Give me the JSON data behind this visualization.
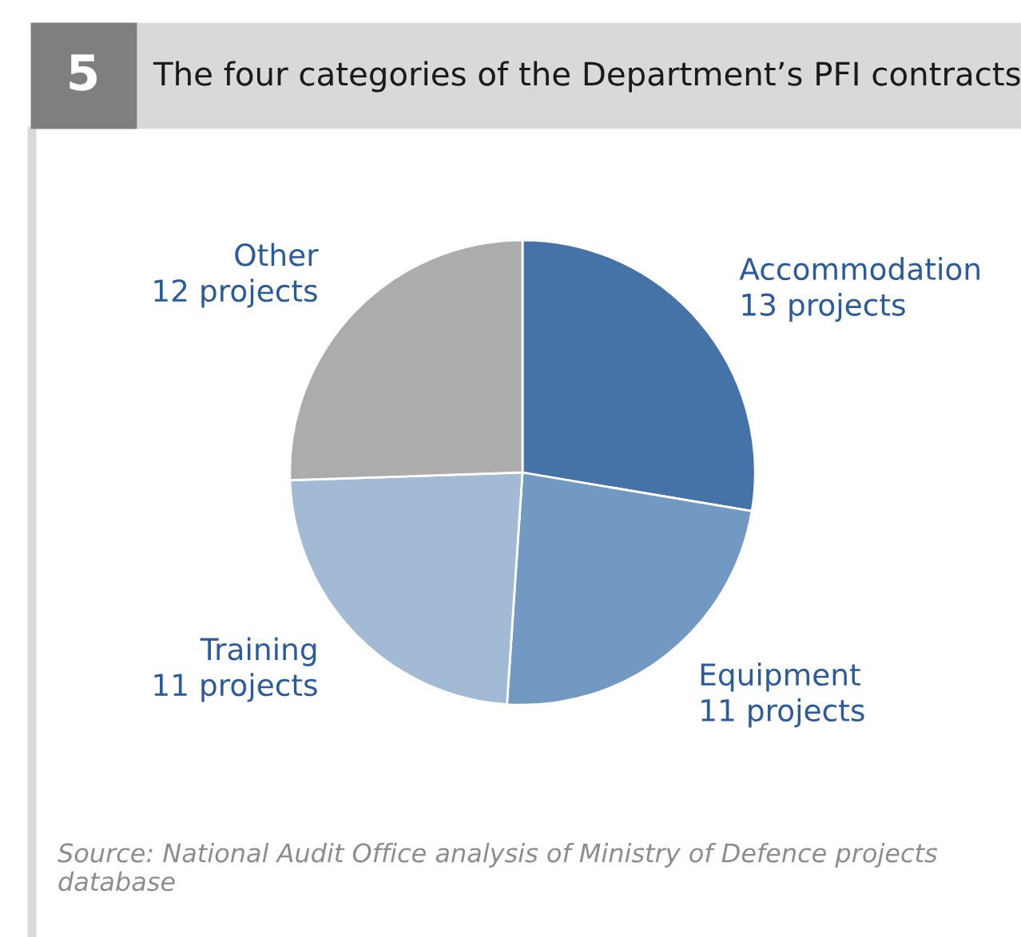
{
  "chart_data": {
    "type": "pie",
    "title": "The four categories of the Department’s PFI contracts",
    "categories": [
      "Accommodation",
      "Equipment",
      "Training",
      "Other"
    ],
    "values": [
      13,
      11,
      11,
      12
    ],
    "value_labels": [
      "13 projects",
      "11 projects",
      "11 projects",
      "12 projects"
    ],
    "colors": [
      "#4572a7",
      "#7199c1",
      "#a3bad5",
      "#acacac"
    ],
    "annotations": [
      "5",
      "Source: National Audit Office analysis of Ministry of Defence projects database"
    ],
    "legend": false
  }
}
